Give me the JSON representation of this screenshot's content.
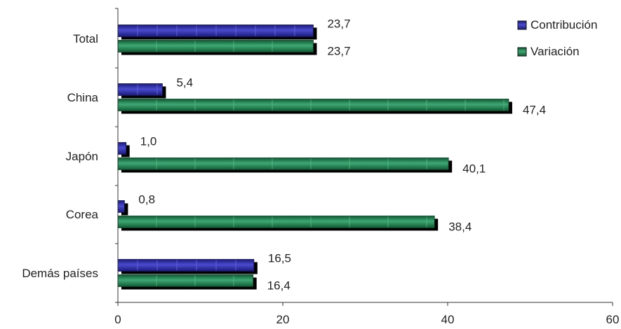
{
  "chart_data": {
    "type": "bar",
    "orientation": "horizontal",
    "categories": [
      "Total",
      "China",
      "Japón",
      "Corea",
      "Demás países"
    ],
    "series": [
      {
        "name": "Contribución",
        "values": [
          23.7,
          5.4,
          1.0,
          0.8,
          16.5
        ],
        "labels": [
          "23,7",
          "5,4",
          "1,0",
          "0,8",
          "16,5"
        ],
        "color": "#2a2aa0"
      },
      {
        "name": "Variación",
        "values": [
          23.7,
          47.4,
          40.1,
          38.4,
          16.4
        ],
        "labels": [
          "23,7",
          "47,4",
          "40,1",
          "38,4",
          "16,4"
        ],
        "color": "#1f7a4a"
      }
    ],
    "xlim": [
      0,
      60
    ],
    "xticks": [
      "0",
      "20",
      "40",
      "60"
    ],
    "legend": "top-right",
    "grid": false
  }
}
